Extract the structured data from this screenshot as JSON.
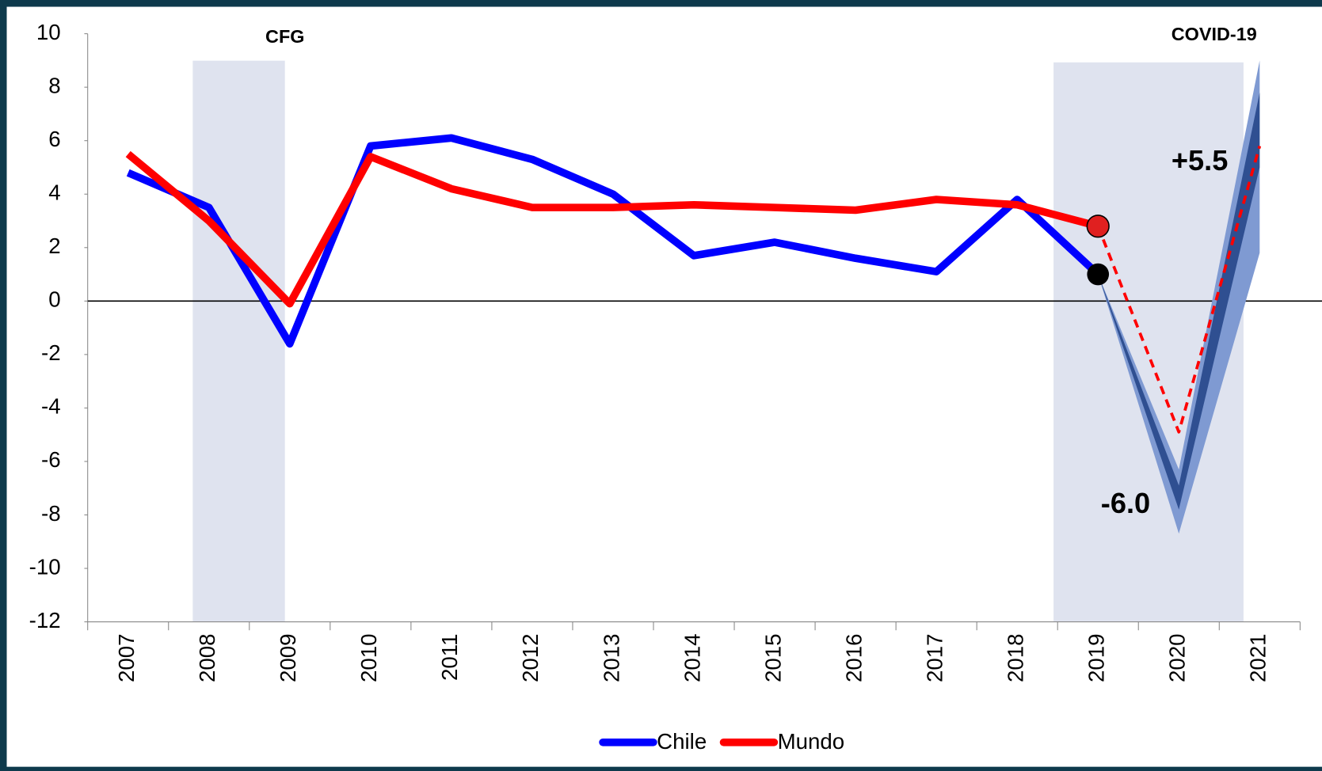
{
  "chart_data": {
    "type": "line",
    "categories": [
      "2007",
      "2008",
      "2009",
      "2010",
      "2011",
      "2012",
      "2013",
      "2014",
      "2015",
      "2016",
      "2017",
      "2018",
      "2019",
      "2020",
      "2021"
    ],
    "series": [
      {
        "name": "Chile",
        "color": "#0000ff",
        "values": [
          4.8,
          3.5,
          -1.6,
          5.8,
          6.1,
          5.3,
          4.0,
          1.7,
          2.2,
          1.6,
          1.1,
          3.8,
          1.0,
          null,
          null
        ]
      },
      {
        "name": "Mundo",
        "color": "#ff0000",
        "values": [
          5.5,
          3.0,
          -0.1,
          5.4,
          4.2,
          3.5,
          3.5,
          3.6,
          3.5,
          3.4,
          3.8,
          3.6,
          2.8,
          null,
          null
        ]
      }
    ],
    "forecast": {
      "mundo": [
        null,
        null,
        null,
        null,
        null,
        null,
        null,
        null,
        null,
        null,
        null,
        null,
        2.8,
        -4.9,
        5.8
      ],
      "chile_outer_low": [
        null,
        null,
        null,
        null,
        null,
        null,
        null,
        null,
        null,
        null,
        null,
        null,
        1.0,
        -8.7,
        1.8
      ],
      "chile_outer_high": [
        null,
        null,
        null,
        null,
        null,
        null,
        null,
        null,
        null,
        null,
        null,
        null,
        1.0,
        -6.3,
        9.0
      ],
      "chile_inner_low": [
        null,
        null,
        null,
        null,
        null,
        null,
        null,
        null,
        null,
        null,
        null,
        null,
        1.0,
        -7.8,
        5.0
      ],
      "chile_inner_high": [
        null,
        null,
        null,
        null,
        null,
        null,
        null,
        null,
        null,
        null,
        null,
        null,
        1.0,
        -6.9,
        7.8
      ]
    },
    "annotations": [
      {
        "text": "CFG"
      },
      {
        "text": "COVID-19"
      },
      {
        "text": "-6.0"
      },
      {
        "text": "+5.5"
      }
    ],
    "ylim": [
      -12,
      10
    ],
    "yticks": [
      -12,
      -10,
      -8,
      -6,
      -4,
      -2,
      0,
      2,
      4,
      6,
      8,
      10
    ],
    "grid": false,
    "legend": "bottom"
  }
}
